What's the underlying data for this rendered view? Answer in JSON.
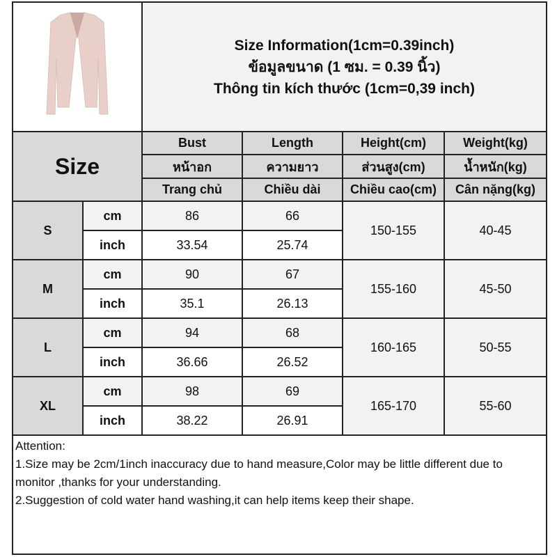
{
  "title": {
    "line1": "Size Information(1cm=0.39inch)",
    "line2": "ข้อมูลขนาด (1 ซม. = 0.39 นิ้ว)",
    "line3": "Thông tin kích thước (1cm=0,39 inch)"
  },
  "product_image": {
    "description_icon": "pink-cardigan-image",
    "color": "#e8cfc8"
  },
  "header": {
    "size_label": "Size",
    "columns": [
      {
        "en": "Bust",
        "th": "หน้าอก",
        "vi": "Trang chủ"
      },
      {
        "en": "Length",
        "th": "ความยาว",
        "vi": "Chiều dài"
      },
      {
        "en": "Height(cm)",
        "th": "ส่วนสูง(cm)",
        "vi": "Chiều cao(cm)"
      },
      {
        "en": "Weight(kg)",
        "th": "น้ำหนัก(kg)",
        "vi": "Cân nặng(kg)"
      }
    ]
  },
  "rows": [
    {
      "size": "S",
      "cm_label": "cm",
      "inch_label": "inch",
      "bust_cm": "86",
      "length_cm": "66",
      "bust_inch": "33.54",
      "length_inch": "25.74",
      "height": "150-155",
      "weight": "40-45"
    },
    {
      "size": "M",
      "cm_label": "cm",
      "inch_label": "inch",
      "bust_cm": "90",
      "length_cm": "67",
      "bust_inch": "35.1",
      "length_inch": "26.13",
      "height": "155-160",
      "weight": "45-50"
    },
    {
      "size": "L",
      "cm_label": "cm",
      "inch_label": "inch",
      "bust_cm": "94",
      "length_cm": "68",
      "bust_inch": "36.66",
      "length_inch": "26.52",
      "height": "160-165",
      "weight": "50-55"
    },
    {
      "size": "XL",
      "cm_label": "cm",
      "inch_label": "inch",
      "bust_cm": "98",
      "length_cm": "69",
      "bust_inch": "38.22",
      "length_inch": "26.91",
      "height": "165-170",
      "weight": "55-60"
    }
  ],
  "attention": {
    "heading": "Attention:",
    "note1": "1.Size may be 2cm/1inch inaccuracy due to hand measure,Color may be little different due to monitor ,thanks for your understanding.",
    "note2": "2.Suggestion of cold water hand washing,it can help items keep their shape."
  }
}
